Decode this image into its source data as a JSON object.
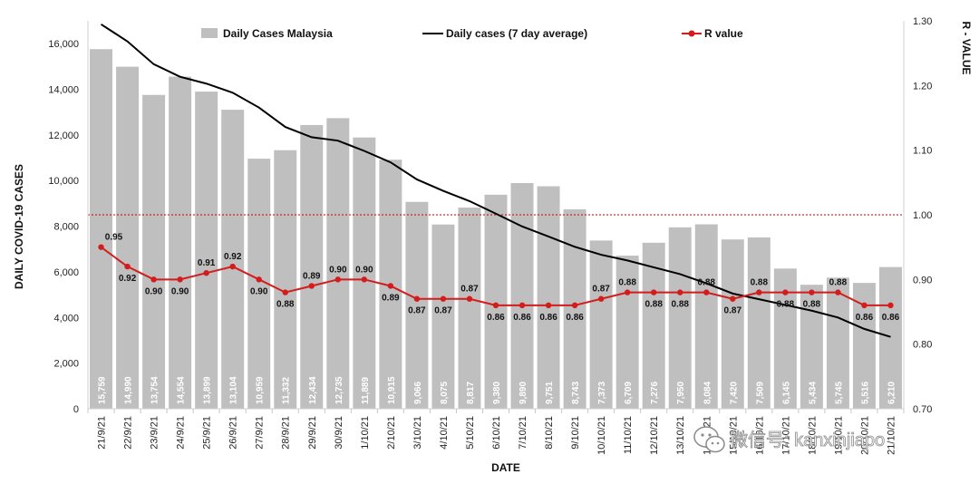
{
  "chart_data": {
    "type": "bar",
    "xlabel": "DATE",
    "ylabel": "DAILY COVID-19 CASES",
    "y2label": "R - VALUE",
    "ylim": [
      0,
      17000
    ],
    "yticks": [
      0,
      2000,
      4000,
      6000,
      8000,
      10000,
      12000,
      14000,
      16000
    ],
    "y2lim": [
      0.7,
      1.3
    ],
    "y2ticks": [
      "0.70",
      "0.80",
      "0.90",
      "1.00",
      "1.10",
      "1.20",
      "1.30"
    ],
    "reference_line_r": 1.0,
    "categories": [
      "21/9/21",
      "22/9/21",
      "23/9/21",
      "24/9/21",
      "25/9/21",
      "26/9/21",
      "27/9/21",
      "28/9/21",
      "29/9/21",
      "30/9/21",
      "1/10/21",
      "2/10/21",
      "3/10/21",
      "4/10/21",
      "5/10/21",
      "6/10/21",
      "7/10/21",
      "8/10/21",
      "9/10/21",
      "10/10/21",
      "11/10/21",
      "12/10/21",
      "13/10/21",
      "14/10/21",
      "15/10/21",
      "16/10/21",
      "17/10/21",
      "18/10/21",
      "19/10/21",
      "20/10/21",
      "21/10/21"
    ],
    "series": [
      {
        "name": "Daily Cases Malaysia",
        "type": "bar",
        "axis": "left",
        "color": "#bfbfbf",
        "values": [
          15759,
          14990,
          13754,
          14554,
          13899,
          13104,
          10959,
          11332,
          12434,
          12735,
          11889,
          10915,
          9066,
          8075,
          8817,
          9380,
          9890,
          9751,
          8743,
          7373,
          6709,
          7276,
          7950,
          8084,
          7420,
          7509,
          6145,
          5434,
          5745,
          5516,
          6210
        ],
        "labels": [
          "15,759",
          "14,990",
          "13,754",
          "14,554",
          "13,899",
          "13,104",
          "10,959",
          "11,332",
          "12,434",
          "12,735",
          "11,889",
          "10,915",
          "9,066",
          "8,075",
          "8,817",
          "9,380",
          "9,890",
          "9,751",
          "8,743",
          "7,373",
          "6,709",
          "7,276",
          "7,950",
          "8,084",
          "7,420",
          "7,509",
          "6,145",
          "5,434",
          "5,745",
          "5,516",
          "6,210"
        ]
      },
      {
        "name": "Daily cases (7 day average)",
        "type": "line",
        "axis": "left",
        "color": "#000000",
        "values": [
          16850,
          16100,
          15100,
          14550,
          14250,
          13850,
          13200,
          12350,
          11900,
          11750,
          11300,
          10800,
          10050,
          9550,
          9100,
          8550,
          7990,
          7550,
          7100,
          6750,
          6500,
          6200,
          5900,
          5500,
          5050,
          4800,
          4550,
          4300,
          4000,
          3500,
          3150
        ]
      },
      {
        "name": "R value",
        "type": "line",
        "axis": "right",
        "color": "#d41c1c",
        "values": [
          0.95,
          0.92,
          0.9,
          0.9,
          0.91,
          0.92,
          0.9,
          0.88,
          0.89,
          0.9,
          0.9,
          0.89,
          0.87,
          0.87,
          0.87,
          0.86,
          0.86,
          0.86,
          0.86,
          0.87,
          0.88,
          0.88,
          0.88,
          0.88,
          0.87,
          0.88,
          0.88,
          0.88,
          0.88,
          0.86,
          0.86
        ],
        "labels": [
          "0.95",
          "0.92",
          "0.90",
          "0.90",
          "0.91",
          "0.92",
          "0.90",
          "0.88",
          "0.89",
          "0.90",
          "0.90",
          "0.89",
          "0.87",
          "0.87",
          "0.87",
          "0.86",
          "0.86",
          "0.86",
          "0.86",
          "0.87",
          "0.88",
          "0.88",
          "0.88",
          "0.88",
          "0.87",
          "0.88",
          "0.88",
          "0.88",
          "0.88",
          "0.86",
          "0.86"
        ]
      }
    ],
    "legend": "top"
  },
  "watermark": {
    "text": "微信号: kanxinjiapo",
    "icon": "wechat-icon"
  }
}
